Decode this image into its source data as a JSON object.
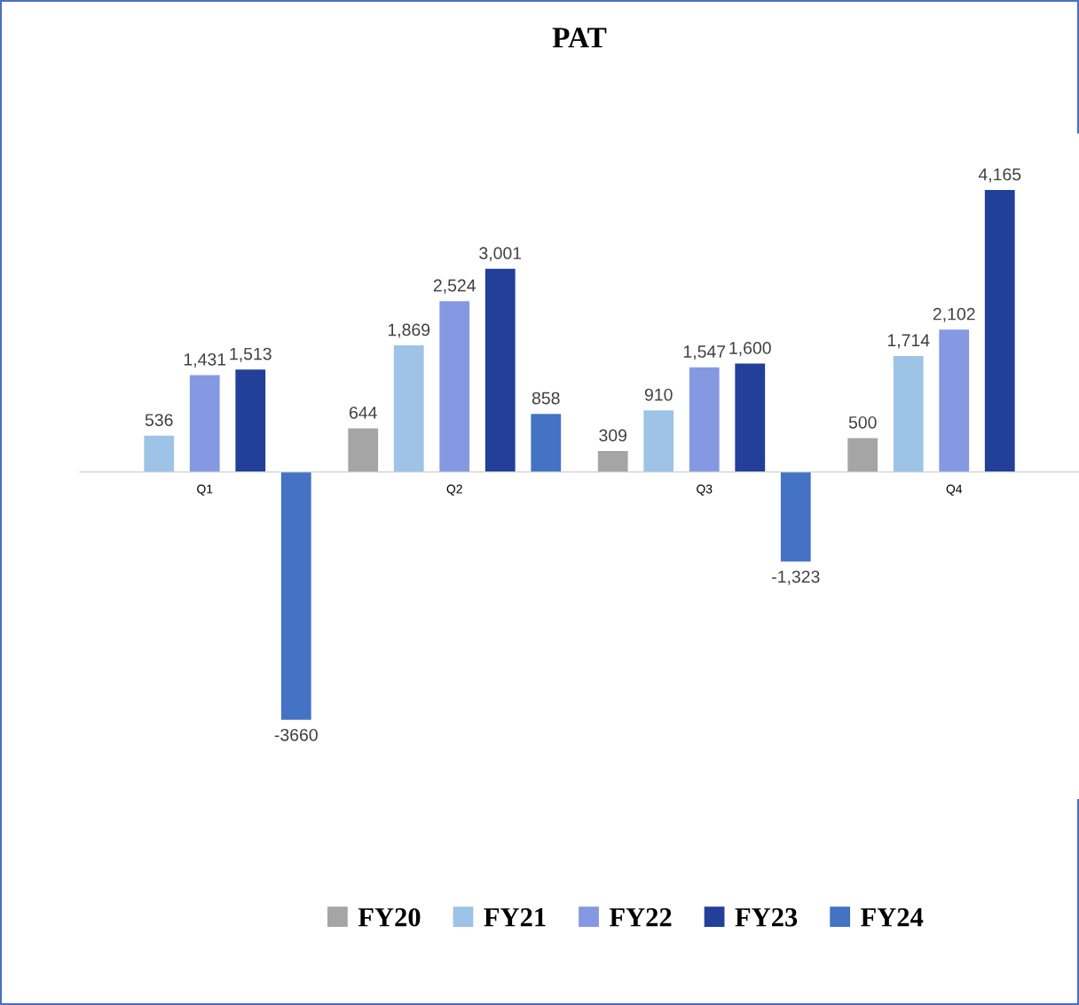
{
  "chart_data": {
    "type": "bar",
    "title": "PAT",
    "categories": [
      "Q1",
      "Q2",
      "Q3",
      "Q4"
    ],
    "series": [
      {
        "name": "FY20",
        "color": "#a5a5a5",
        "values": [
          null,
          644,
          309,
          500
        ],
        "value_labels": [
          null,
          "644",
          "309",
          "500"
        ]
      },
      {
        "name": "FY21",
        "color": "#9dc3e6",
        "values": [
          536,
          1869,
          910,
          1714
        ],
        "value_labels": [
          "536",
          "1,869",
          "910",
          "1,714"
        ]
      },
      {
        "name": "FY22",
        "color": "#8599e2",
        "values": [
          1431,
          2524,
          1547,
          2102
        ],
        "value_labels": [
          "1,431",
          "2,524",
          "1,547",
          "2,102"
        ]
      },
      {
        "name": "FY23",
        "color": "#223f99",
        "values": [
          1513,
          3001,
          1600,
          4165
        ],
        "value_labels": [
          "1,513",
          "3,001",
          "1,600",
          "4,165"
        ]
      },
      {
        "name": "FY24",
        "color": "#4472c4",
        "values": [
          -3660,
          858,
          -1323,
          null
        ],
        "value_labels": [
          "-3660",
          "858",
          "-1,323",
          null
        ]
      }
    ],
    "legend": "bottom",
    "grid": false
  }
}
